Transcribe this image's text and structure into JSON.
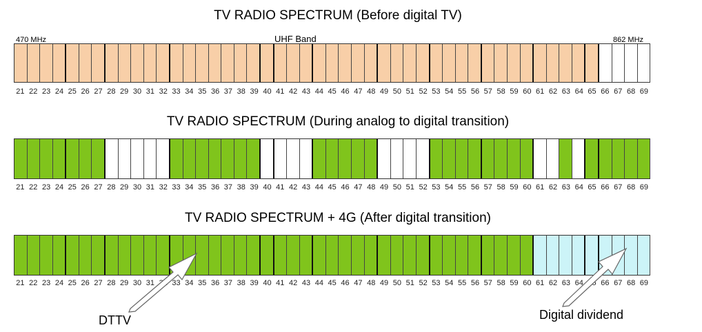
{
  "colors": {
    "analog": "#f8cfa8",
    "digital": "#80c41c",
    "free": "#ffffff",
    "dividend": "#ccf4f8",
    "arrow_fill": "#ffffff",
    "arrow_stroke": "#666666"
  },
  "channels": [
    21,
    22,
    23,
    24,
    25,
    26,
    27,
    28,
    29,
    30,
    31,
    32,
    33,
    34,
    35,
    36,
    37,
    38,
    39,
    40,
    41,
    42,
    43,
    44,
    45,
    46,
    47,
    48,
    49,
    50,
    51,
    52,
    53,
    54,
    55,
    56,
    57,
    58,
    59,
    60,
    61,
    62,
    63,
    64,
    65,
    66,
    67,
    68,
    69
  ],
  "group_ends": [
    24,
    27,
    32,
    39,
    40,
    43,
    48,
    52,
    56,
    60,
    64,
    65
  ],
  "panels": [
    {
      "title": "TV RADIO SPECTRUM (Before digital TV)",
      "label_left": "470 MHz",
      "label_center": "UHF Band",
      "label_right": "862 MHz",
      "allocation": {
        "analog": [
          21,
          22,
          23,
          24,
          25,
          26,
          27,
          28,
          29,
          30,
          31,
          32,
          33,
          34,
          35,
          36,
          37,
          38,
          39,
          40,
          41,
          42,
          43,
          44,
          45,
          46,
          47,
          48,
          49,
          50,
          51,
          52,
          53,
          54,
          55,
          56,
          57,
          58,
          59,
          60,
          61,
          62,
          63,
          64,
          65
        ],
        "free": [
          66,
          67,
          68,
          69
        ]
      }
    },
    {
      "title": "TV RADIO SPECTRUM (During analog to digital transition)",
      "allocation": {
        "digital": [
          21,
          22,
          23,
          24,
          25,
          26,
          27,
          33,
          34,
          35,
          36,
          37,
          38,
          39,
          44,
          45,
          46,
          47,
          48,
          53,
          54,
          55,
          56,
          57,
          58,
          59,
          60,
          63,
          65,
          66,
          67,
          68,
          69
        ],
        "free": [
          28,
          29,
          30,
          31,
          32,
          40,
          41,
          42,
          43,
          49,
          50,
          51,
          52,
          61,
          62,
          64
        ]
      }
    },
    {
      "title": "TV RADIO SPECTRUM + 4G (After digital transition)",
      "allocation": {
        "digital": [
          21,
          22,
          23,
          24,
          25,
          26,
          27,
          28,
          29,
          30,
          31,
          32,
          33,
          34,
          35,
          36,
          37,
          38,
          39,
          40,
          41,
          42,
          43,
          44,
          45,
          46,
          47,
          48,
          49,
          50,
          51,
          52,
          53,
          54,
          55,
          56,
          57,
          58,
          59,
          60
        ],
        "dividend": [
          61,
          62,
          63,
          64,
          65,
          66,
          67,
          68,
          69
        ]
      },
      "callouts": {
        "dttv": "DTTV",
        "dividend": "Digital dividend"
      }
    }
  ]
}
